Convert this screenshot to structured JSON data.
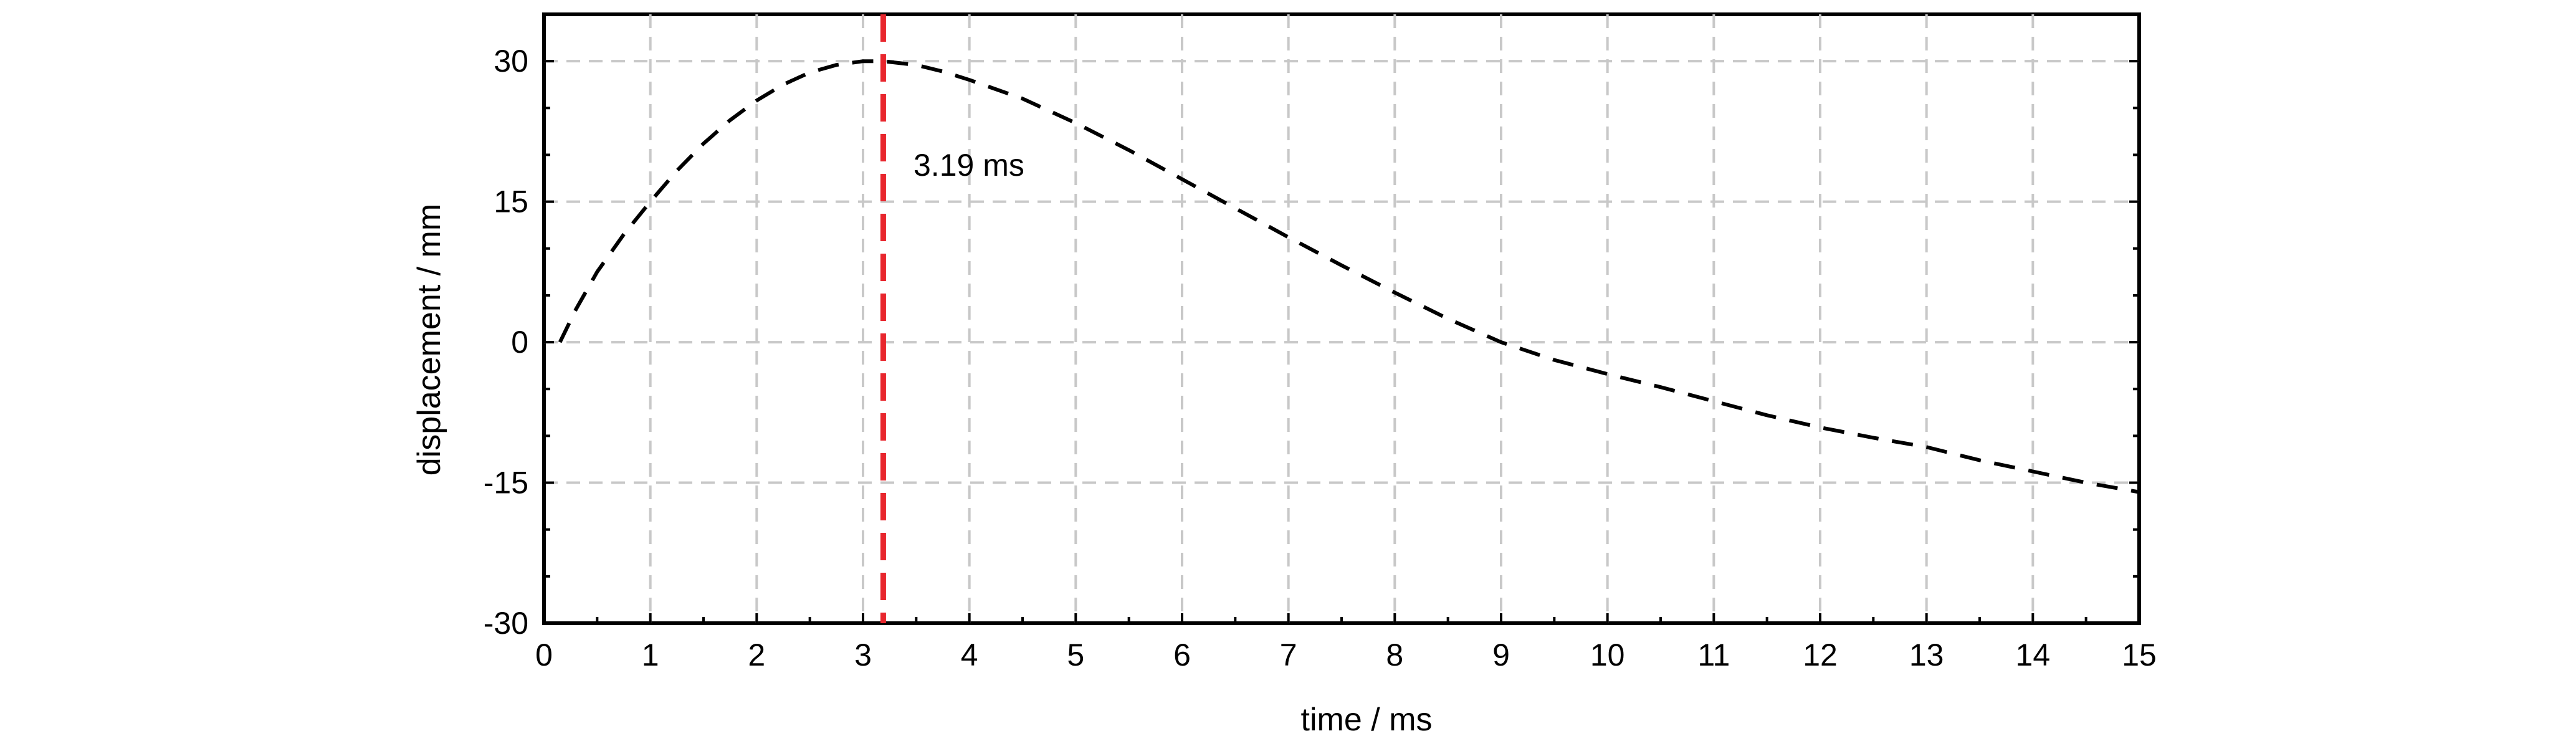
{
  "chart_data": {
    "type": "line",
    "title": "",
    "xlabel": "time / ms",
    "ylabel": "displacement / mm",
    "xlim": [
      0,
      15
    ],
    "ylim": [
      -30,
      35
    ],
    "x_ticks": [
      0,
      1,
      2,
      3,
      4,
      5,
      6,
      7,
      8,
      9,
      10,
      11,
      12,
      13,
      14,
      15
    ],
    "y_ticks": [
      -30,
      -15,
      0,
      15,
      30
    ],
    "grid": true,
    "legend": null,
    "colors": {
      "series": "#000000",
      "marker_line": "#e8262d",
      "grid": "#c8c8c8",
      "frame": "#000000"
    },
    "series": [
      {
        "line_style": "dashed",
        "x": [
          0.15,
          0.3,
          0.5,
          0.75,
          1.0,
          1.25,
          1.5,
          1.75,
          2.0,
          2.25,
          2.5,
          2.75,
          3.0,
          3.19,
          3.5,
          3.75,
          4.0,
          4.5,
          5.0,
          5.5,
          6.0,
          6.5,
          7.0,
          7.5,
          8.0,
          8.5,
          9.0,
          9.5,
          10.0,
          10.5,
          11.0,
          11.5,
          12.0,
          12.5,
          13.0,
          13.5,
          14.0,
          14.5,
          15.0
        ],
        "y": [
          0.0,
          3.5,
          7.5,
          11.5,
          15.0,
          18.3,
          21.2,
          23.7,
          25.8,
          27.5,
          28.8,
          29.6,
          30.0,
          30.0,
          29.6,
          28.9,
          28.0,
          26.0,
          23.4,
          20.5,
          17.4,
          14.3,
          11.2,
          8.2,
          5.3,
          2.5,
          0.0,
          -1.9,
          -3.4,
          -4.8,
          -6.3,
          -7.8,
          -9.1,
          -10.2,
          -11.2,
          -12.6,
          -13.8,
          -15.0,
          -16.0
        ]
      }
    ],
    "annotations": [
      {
        "type": "vertical_line",
        "x": 3.19,
        "label": "3.19 ms"
      }
    ]
  }
}
